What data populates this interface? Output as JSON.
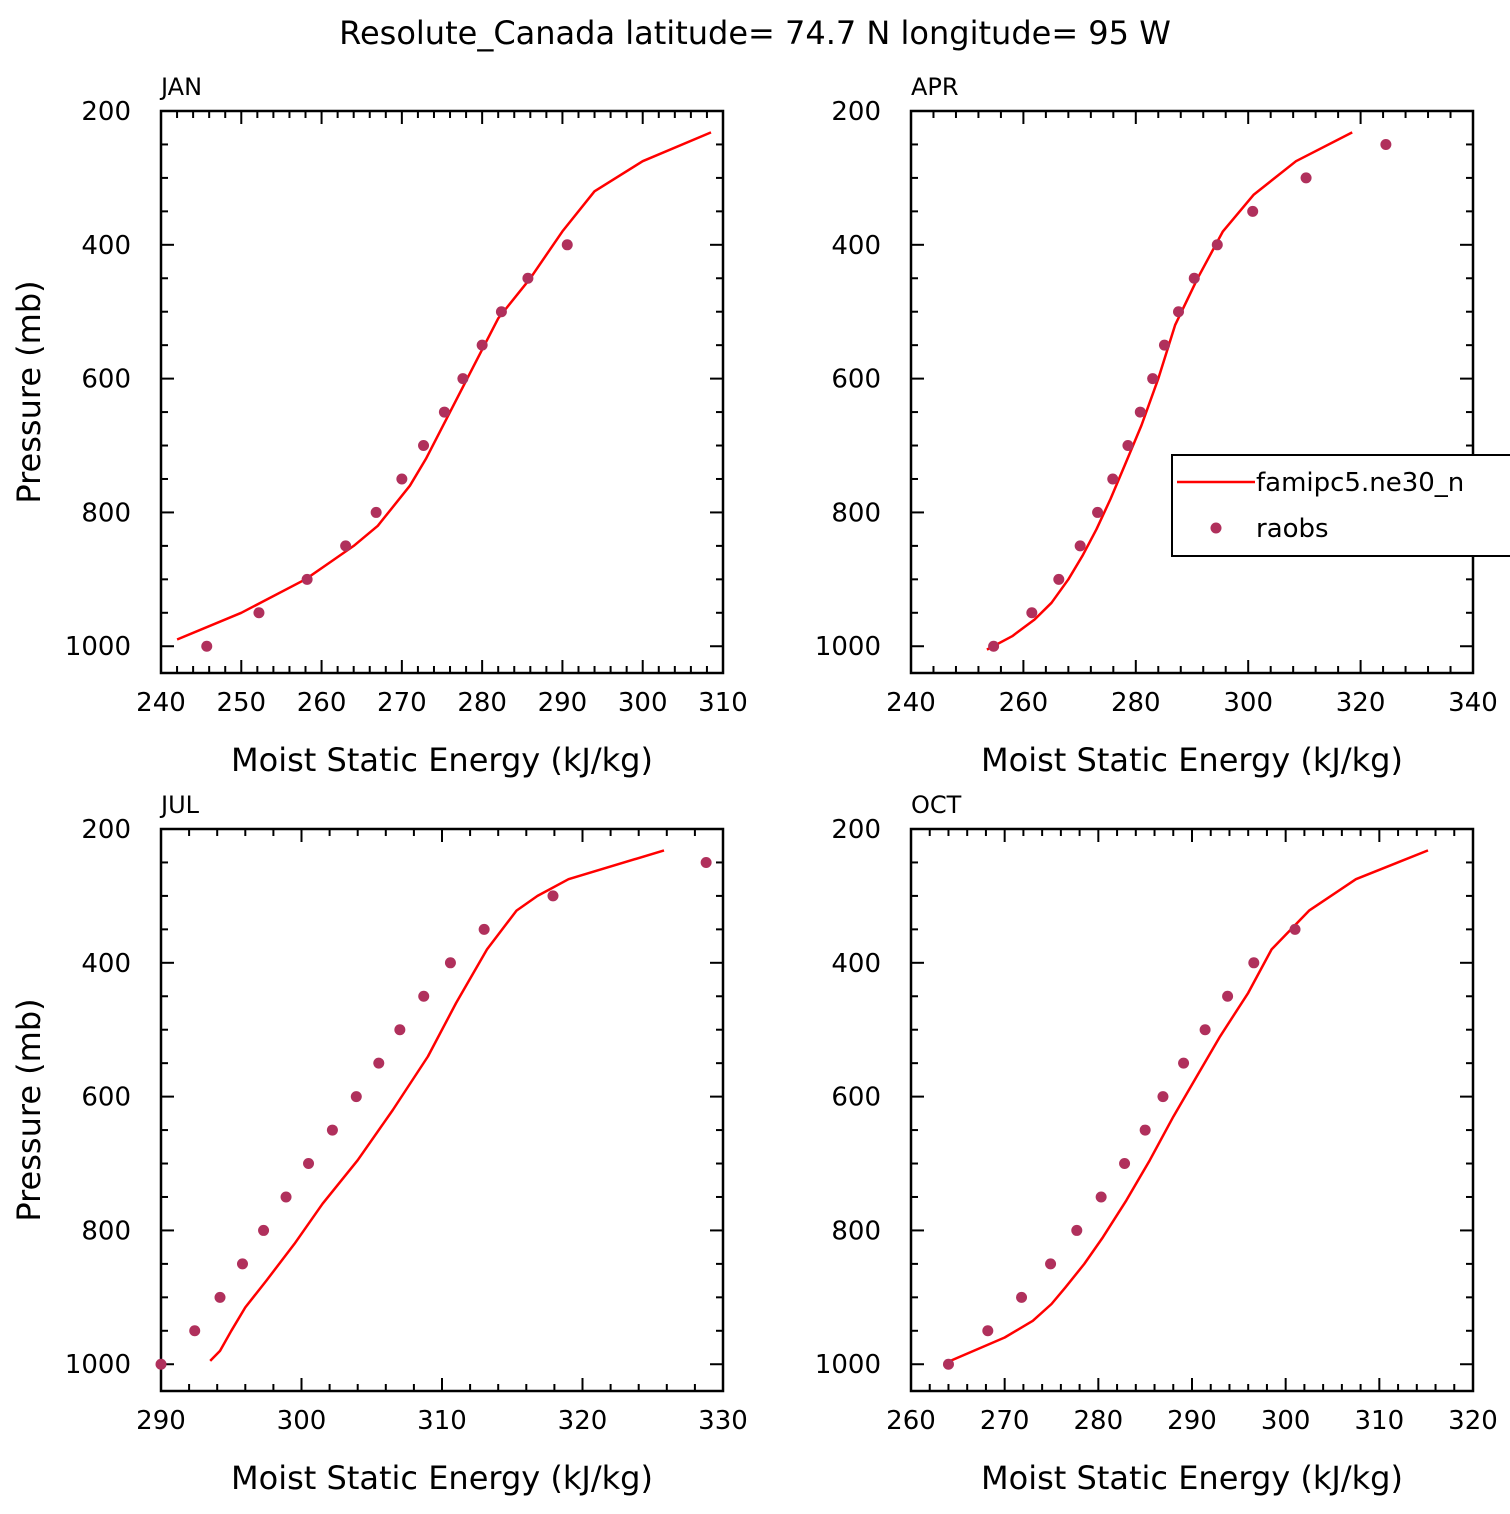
{
  "title": "Resolute_Canada  latitude= 74.7 N longitude= 95 W",
  "colors": {
    "model": "#ff0000",
    "obs": "#b0305c",
    "axis": "#000000"
  },
  "legend": {
    "model_label": "famipc5.ne30_n",
    "obs_label": "raobs"
  },
  "chart_data": [
    {
      "type": "line+scatter",
      "panel": "JAN",
      "xlabel": "Moist Static Energy (kJ/kg)",
      "ylabel": "Pressure (mb)",
      "xlim": [
        240,
        310
      ],
      "ylim": [
        1040,
        200
      ],
      "xticks": [
        240,
        250,
        260,
        270,
        280,
        290,
        300,
        310
      ],
      "yticks": [
        200,
        400,
        600,
        800,
        1000
      ],
      "series": [
        {
          "name": "famipc5.ne30_n",
          "style": "line",
          "x": [
            242,
            250,
            258,
            261,
            264,
            267,
            271,
            273,
            276,
            279,
            282,
            286,
            290,
            294,
            300,
            308.5
          ],
          "y": [
            990,
            950,
            900,
            875,
            850,
            820,
            760,
            720,
            650,
            580,
            510,
            450,
            380,
            320,
            275,
            232
          ]
        },
        {
          "name": "raobs",
          "style": "markers",
          "x": [
            245.7,
            252.2,
            258.2,
            263.0,
            266.8,
            270.0,
            272.7,
            275.3,
            277.6,
            280.0,
            282.4,
            285.7,
            290.6
          ],
          "y": [
            1000,
            950,
            900,
            850,
            800,
            750,
            700,
            650,
            600,
            550,
            500,
            450,
            400
          ]
        }
      ]
    },
    {
      "type": "line+scatter",
      "panel": "APR",
      "xlabel": "Moist Static Energy (kJ/kg)",
      "ylabel": "",
      "xlim": [
        240,
        340
      ],
      "ylim": [
        1040,
        200
      ],
      "xticks": [
        240,
        260,
        280,
        300,
        320,
        340
      ],
      "yticks": [
        200,
        400,
        600,
        800,
        1000
      ],
      "series": [
        {
          "name": "famipc5.ne30_n",
          "style": "line",
          "x": [
            253.5,
            258,
            262,
            265,
            268,
            270.5,
            273,
            275.5,
            278,
            281,
            284,
            287,
            291,
            295.5,
            301,
            308.5,
            318.5
          ],
          "y": [
            1005,
            985,
            960,
            935,
            900,
            865,
            825,
            780,
            730,
            670,
            600,
            520,
            450,
            380,
            325,
            275,
            232
          ]
        },
        {
          "name": "raobs",
          "style": "markers",
          "x": [
            254.7,
            261.5,
            266.3,
            270.1,
            273.2,
            275.9,
            278.6,
            280.8,
            283.0,
            285.1,
            287.6,
            290.4,
            294.5,
            300.8,
            310.3,
            324.5
          ],
          "y": [
            1000,
            950,
            900,
            850,
            800,
            750,
            700,
            650,
            600,
            550,
            500,
            450,
            400,
            350,
            300,
            250
          ]
        }
      ]
    },
    {
      "type": "line+scatter",
      "panel": "JUL",
      "xlabel": "Moist Static Energy (kJ/kg)",
      "ylabel": "Pressure (mb)",
      "xlim": [
        290,
        330
      ],
      "ylim": [
        1040,
        200
      ],
      "xticks": [
        290,
        300,
        310,
        320,
        330
      ],
      "yticks": [
        200,
        400,
        600,
        800,
        1000
      ],
      "series": [
        {
          "name": "famipc5.ne30_n",
          "style": "line",
          "x": [
            293.5,
            294.2,
            295,
            296,
            297.5,
            299.5,
            301.5,
            304,
            306.5,
            309,
            311,
            313.2,
            315.3,
            316.8,
            319,
            325.8
          ],
          "y": [
            995,
            980,
            950,
            915,
            875,
            820,
            760,
            695,
            620,
            540,
            460,
            380,
            322,
            300,
            275,
            232
          ]
        },
        {
          "name": "raobs",
          "style": "markers",
          "x": [
            290.0,
            292.4,
            294.2,
            295.8,
            297.3,
            298.9,
            300.5,
            302.2,
            303.9,
            305.5,
            307.0,
            308.7,
            310.6,
            313.0,
            317.9,
            328.8
          ],
          "y": [
            1000,
            950,
            900,
            850,
            800,
            750,
            700,
            650,
            600,
            550,
            500,
            450,
            400,
            350,
            300,
            250
          ]
        }
      ]
    },
    {
      "type": "line+scatter",
      "panel": "OCT",
      "xlabel": "Moist Static Energy (kJ/kg)",
      "ylabel": "",
      "xlim": [
        260,
        320
      ],
      "ylim": [
        1040,
        200
      ],
      "xticks": [
        260,
        270,
        280,
        290,
        300,
        310,
        320
      ],
      "yticks": [
        200,
        400,
        600,
        800,
        1000
      ],
      "series": [
        {
          "name": "famipc5.ne30_n",
          "style": "line",
          "x": [
            264.2,
            270,
            273,
            275,
            276.5,
            278.5,
            280.5,
            283,
            285.5,
            288,
            290.5,
            293,
            296,
            298.5,
            302.5,
            307.5,
            315.2
          ],
          "y": [
            995,
            960,
            935,
            910,
            885,
            850,
            810,
            755,
            695,
            630,
            570,
            510,
            445,
            380,
            322,
            275,
            232
          ]
        },
        {
          "name": "raobs",
          "style": "markers",
          "x": [
            264.0,
            268.2,
            271.8,
            274.9,
            277.7,
            280.3,
            282.8,
            285.0,
            286.9,
            289.1,
            291.4,
            293.8,
            296.6,
            301.0
          ],
          "y": [
            1000,
            950,
            900,
            850,
            800,
            750,
            700,
            650,
            600,
            550,
            500,
            450,
            400,
            350
          ]
        }
      ]
    }
  ]
}
